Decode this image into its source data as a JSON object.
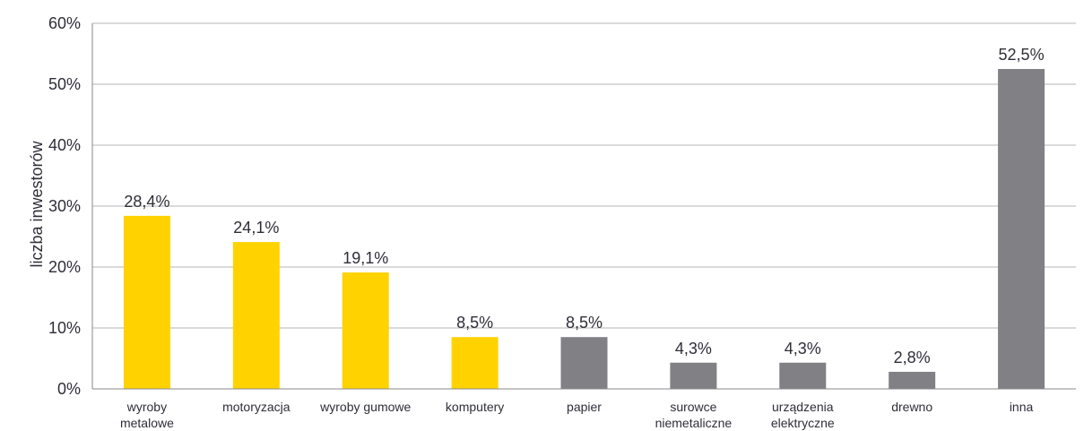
{
  "chart_data": {
    "type": "bar",
    "title": "",
    "xlabel": "",
    "ylabel": "liczba inwestorów",
    "ylim": [
      0,
      60
    ],
    "yticks": [
      0,
      10,
      20,
      30,
      40,
      50,
      60
    ],
    "ytick_labels": [
      "0%",
      "10%",
      "20%",
      "30%",
      "40%",
      "50%",
      "60%"
    ],
    "grid": true,
    "legend": "none",
    "categories": [
      "wyroby metalowe",
      "motoryzacja",
      "wyroby gumowe",
      "komputery",
      "papier",
      "surowce niemetaliczne",
      "urządzenia elektryczne",
      "drewno",
      "inna"
    ],
    "category_lines": [
      [
        "wyroby",
        "metalowe"
      ],
      [
        "motoryzacja"
      ],
      [
        "wyroby gumowe"
      ],
      [
        "komputery"
      ],
      [
        "papier"
      ],
      [
        "surowce",
        "niemetaliczne"
      ],
      [
        "urządzenia",
        "elektryczne"
      ],
      [
        "drewno"
      ],
      [
        "inna"
      ]
    ],
    "values": [
      28.4,
      24.1,
      19.1,
      8.5,
      8.5,
      4.3,
      4.3,
      2.8,
      52.5
    ],
    "value_labels": [
      "28,4%",
      "24,1%",
      "19,1%",
      "8,5%",
      "8,5%",
      "4,3%",
      "4,3%",
      "2,8%",
      "52,5%"
    ],
    "bar_colors": [
      "#ffd200",
      "#ffd200",
      "#ffd200",
      "#ffd200",
      "#808085",
      "#808085",
      "#808085",
      "#808085",
      "#808085"
    ],
    "colors": {
      "highlight": "#ffd200",
      "neutral": "#808085",
      "grid": "#b5b5b8",
      "axis": "#8a8a8f",
      "text": "#2e2e38"
    }
  }
}
